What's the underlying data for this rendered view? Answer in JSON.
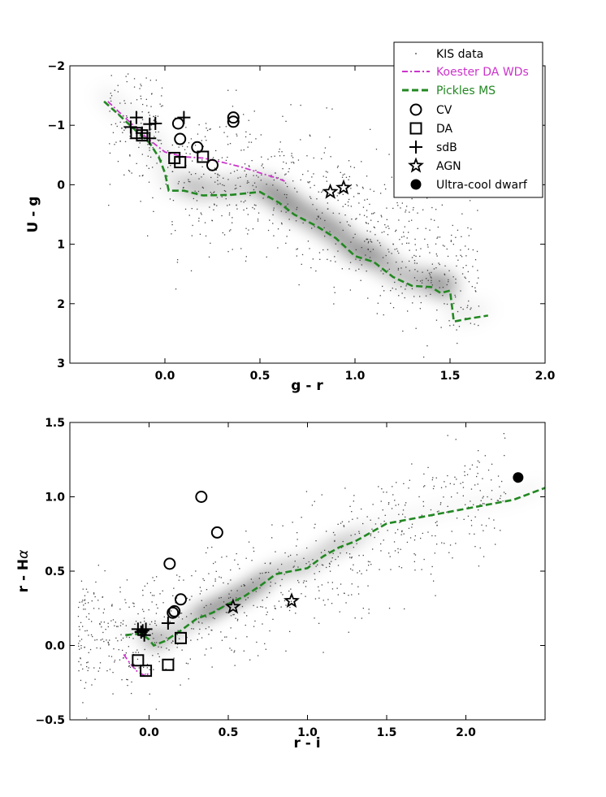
{
  "chart_data": [
    {
      "type": "scatter",
      "panel": "top",
      "xlabel": "g - r",
      "ylabel": "U - g",
      "xlim": [
        -0.5,
        2.0
      ],
      "ylim": [
        3.0,
        -2.0
      ],
      "y_inverted": true,
      "x_ticks": [
        {
          "v": 0.0,
          "label": "0.0"
        },
        {
          "v": 0.5,
          "label": "0.5"
        },
        {
          "v": 1.0,
          "label": "1.0"
        },
        {
          "v": 1.5,
          "label": "1.5"
        },
        {
          "v": 2.0,
          "label": "2.0"
        }
      ],
      "y_ticks": [
        {
          "v": -2,
          "label": "−2"
        },
        {
          "v": -1,
          "label": "−1"
        },
        {
          "v": 0,
          "label": "0"
        },
        {
          "v": 1,
          "label": "1"
        },
        {
          "v": 2,
          "label": "2"
        },
        {
          "v": 3,
          "label": "3"
        }
      ],
      "legend": {
        "placement": "top-right",
        "entries": [
          {
            "label": "KIS data",
            "marker": "dot"
          },
          {
            "label": "Koester DA WDs",
            "marker": "dashdot",
            "color": "#cc33cc"
          },
          {
            "label": "Pickles MS",
            "marker": "dashed",
            "color": "#228822"
          },
          {
            "label": "CV",
            "marker": "circle"
          },
          {
            "label": "DA",
            "marker": "square"
          },
          {
            "label": "sdB",
            "marker": "plus"
          },
          {
            "label": "AGN",
            "marker": "star"
          },
          {
            "label": "Ultra-cool dwarf",
            "marker": "filled-circle"
          }
        ]
      },
      "series": [
        {
          "name": "Pickles MS",
          "style": "dashed",
          "color": "#228822",
          "points": [
            [
              -0.32,
              -1.4
            ],
            [
              -0.25,
              -1.2
            ],
            [
              -0.15,
              -0.9
            ],
            [
              -0.08,
              -0.7
            ],
            [
              -0.03,
              -0.45
            ],
            [
              0.0,
              -0.2
            ],
            [
              0.02,
              0.1
            ],
            [
              0.1,
              0.1
            ],
            [
              0.2,
              0.18
            ],
            [
              0.35,
              0.17
            ],
            [
              0.5,
              0.12
            ],
            [
              0.6,
              0.3
            ],
            [
              0.68,
              0.5
            ],
            [
              0.8,
              0.7
            ],
            [
              0.9,
              0.9
            ],
            [
              1.0,
              1.2
            ],
            [
              1.1,
              1.3
            ],
            [
              1.2,
              1.55
            ],
            [
              1.3,
              1.7
            ],
            [
              1.4,
              1.72
            ],
            [
              1.45,
              1.82
            ],
            [
              1.5,
              1.78
            ],
            [
              1.52,
              2.3
            ],
            [
              1.6,
              2.25
            ],
            [
              1.7,
              2.2
            ]
          ]
        },
        {
          "name": "Koester DA WDs",
          "style": "dashdot",
          "color": "#cc33cc",
          "points": [
            [
              -0.3,
              -1.4
            ],
            [
              -0.2,
              -1.1
            ],
            [
              -0.1,
              -0.8
            ],
            [
              0.0,
              -0.55
            ],
            [
              0.1,
              -0.47
            ],
            [
              0.2,
              -0.45
            ],
            [
              0.3,
              -0.38
            ],
            [
              0.4,
              -0.3
            ],
            [
              0.5,
              -0.2
            ],
            [
              0.6,
              -0.1
            ],
            [
              0.63,
              -0.06
            ]
          ]
        },
        {
          "name": "CV",
          "marker": "circle",
          "points": [
            [
              0.07,
              -1.03
            ],
            [
              0.08,
              -0.77
            ],
            [
              0.17,
              -0.63
            ],
            [
              0.25,
              -0.33
            ],
            [
              0.36,
              -1.13
            ],
            [
              0.36,
              -1.06
            ]
          ]
        },
        {
          "name": "DA",
          "marker": "square",
          "points": [
            [
              -0.15,
              -0.87
            ],
            [
              -0.12,
              -0.83
            ],
            [
              0.05,
              -0.45
            ],
            [
              0.08,
              -0.38
            ],
            [
              0.2,
              -0.47
            ]
          ]
        },
        {
          "name": "sdB",
          "marker": "plus",
          "points": [
            [
              -0.18,
              -0.97
            ],
            [
              -0.15,
              -1.13
            ],
            [
              -0.12,
              -0.87
            ],
            [
              -0.08,
              -0.78
            ],
            [
              -0.08,
              -1.02
            ],
            [
              -0.05,
              -1.03
            ],
            [
              0.1,
              -1.13
            ]
          ]
        },
        {
          "name": "AGN",
          "marker": "star",
          "points": [
            [
              0.87,
              0.12
            ],
            [
              0.94,
              0.05
            ]
          ]
        }
      ]
    },
    {
      "type": "scatter",
      "panel": "bottom",
      "xlabel": "r - i",
      "ylabel": "r - Hα",
      "ylabel_parts": {
        "main": "r - H",
        "greek": "α"
      },
      "xlim": [
        -0.5,
        2.5
      ],
      "ylim": [
        -0.5,
        1.5
      ],
      "x_ticks": [
        {
          "v": 0.0,
          "label": "0.0"
        },
        {
          "v": 0.5,
          "label": "0.5"
        },
        {
          "v": 1.0,
          "label": "1.0"
        },
        {
          "v": 1.5,
          "label": "1.5"
        },
        {
          "v": 2.0,
          "label": "2.0"
        }
      ],
      "y_ticks": [
        {
          "v": -0.5,
          "label": "−0.5"
        },
        {
          "v": 0.0,
          "label": "0.0"
        },
        {
          "v": 0.5,
          "label": "0.5"
        },
        {
          "v": 1.0,
          "label": "1.0"
        },
        {
          "v": 1.5,
          "label": "1.5"
        }
      ],
      "series": [
        {
          "name": "Pickles MS",
          "style": "dashed",
          "color": "#228822",
          "points": [
            [
              -0.15,
              0.07
            ],
            [
              -0.05,
              0.08
            ],
            [
              0.0,
              0.04
            ],
            [
              0.03,
              0.0
            ],
            [
              0.1,
              0.03
            ],
            [
              0.2,
              0.1
            ],
            [
              0.3,
              0.18
            ],
            [
              0.4,
              0.22
            ],
            [
              0.5,
              0.28
            ],
            [
              0.6,
              0.33
            ],
            [
              0.7,
              0.4
            ],
            [
              0.8,
              0.48
            ],
            [
              0.9,
              0.5
            ],
            [
              1.0,
              0.52
            ],
            [
              1.1,
              0.6
            ],
            [
              1.2,
              0.66
            ],
            [
              1.3,
              0.7
            ],
            [
              1.5,
              0.82
            ],
            [
              1.7,
              0.86
            ],
            [
              1.9,
              0.9
            ],
            [
              2.1,
              0.94
            ],
            [
              2.3,
              0.98
            ],
            [
              2.5,
              1.06
            ]
          ]
        },
        {
          "name": "Koester DA WDs",
          "style": "dashdot",
          "color": "#cc33cc",
          "points": [
            [
              -0.16,
              -0.06
            ],
            [
              -0.12,
              -0.12
            ],
            [
              -0.08,
              -0.17
            ],
            [
              -0.05,
              -0.19
            ],
            [
              -0.03,
              -0.2
            ],
            [
              0.0,
              -0.19
            ]
          ]
        },
        {
          "name": "CV",
          "marker": "circle",
          "points": [
            [
              0.13,
              0.55
            ],
            [
              0.15,
              0.22
            ],
            [
              0.16,
              0.23
            ],
            [
              0.2,
              0.31
            ],
            [
              0.33,
              1.0
            ],
            [
              0.43,
              0.76
            ]
          ]
        },
        {
          "name": "DA",
          "marker": "square",
          "points": [
            [
              -0.07,
              -0.1
            ],
            [
              -0.02,
              -0.17
            ],
            [
              0.12,
              -0.13
            ],
            [
              0.2,
              0.05
            ]
          ]
        },
        {
          "name": "sdB",
          "marker": "plus",
          "points": [
            [
              -0.07,
              0.11
            ],
            [
              -0.05,
              0.09
            ],
            [
              -0.04,
              0.1
            ],
            [
              -0.03,
              0.07
            ],
            [
              -0.02,
              0.11
            ],
            [
              0.12,
              0.15
            ]
          ]
        },
        {
          "name": "AGN",
          "marker": "star",
          "points": [
            [
              0.53,
              0.26
            ],
            [
              0.9,
              0.3
            ]
          ]
        },
        {
          "name": "Ultra-cool dwarf",
          "marker": "filled-circle",
          "points": [
            [
              2.33,
              1.13
            ]
          ]
        }
      ]
    }
  ]
}
